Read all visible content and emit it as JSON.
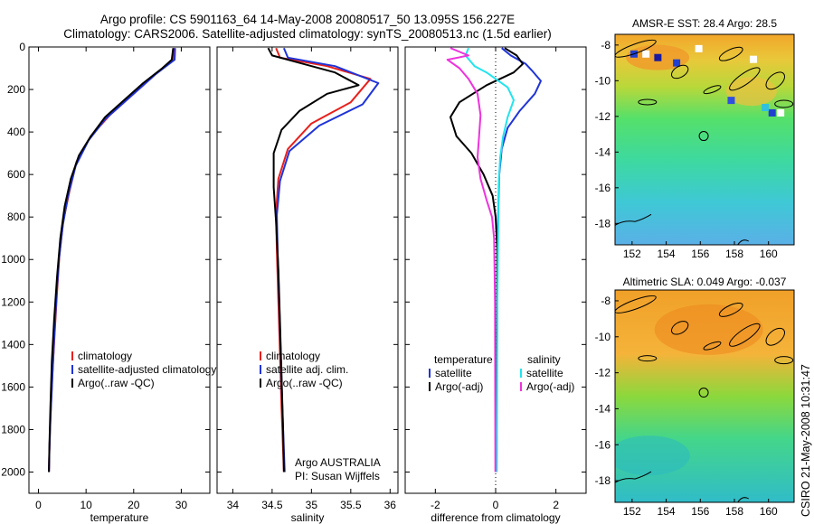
{
  "title_line1": "Argo profile: CS 5901163_64 14-May-2008 20080517_50 13.095S 156.227E",
  "title_line2": "Climatology: CARS2006. Satellite-adjusted climatology: synTS_20080513.nc (1.5d earlier)",
  "side_stamp": "CSIRO 21-May-2008 10:31:47",
  "colors": {
    "clim": "#e8201c",
    "sat": "#1f34d8",
    "argo": "#000000",
    "sal_sat": "#22e4ee",
    "sal_argo": "#ee33dd"
  },
  "chart_data": [
    {
      "type": "line",
      "id": "temperature",
      "xlabel": "temperature",
      "xlim": [
        -2,
        36
      ],
      "ylim": [
        2100,
        0
      ],
      "xticks": [
        0,
        10,
        20,
        30
      ],
      "yticks": [
        0,
        200,
        400,
        600,
        800,
        1000,
        1200,
        1400,
        1600,
        1800,
        2000
      ],
      "legend": [
        "climatology",
        "satellite-adjusted climatology",
        "Argo(..raw -QC)"
      ],
      "series": [
        {
          "name": "climatology",
          "color": "clim",
          "x": [
            28.5,
            28.4,
            25,
            20,
            15,
            11,
            8,
            6.5,
            5.2,
            4.4,
            3.9,
            3.4,
            2.9,
            2.5,
            2.3,
            2.2
          ],
          "y": [
            5,
            60,
            120,
            220,
            320,
            420,
            540,
            680,
            820,
            980,
            1150,
            1350,
            1550,
            1750,
            1900,
            2000
          ]
        },
        {
          "name": "satellite-adjusted climatology",
          "color": "sat",
          "x": [
            28.7,
            28.6,
            24.5,
            19,
            14,
            10.5,
            7.8,
            6.2,
            5.1,
            4.3,
            3.8,
            3.3,
            2.9,
            2.5,
            2.3,
            2.2
          ],
          "y": [
            5,
            60,
            130,
            240,
            340,
            440,
            560,
            700,
            840,
            1000,
            1170,
            1370,
            1560,
            1760,
            1900,
            2000
          ]
        },
        {
          "name": "Argo(..raw -QC)",
          "color": "argo",
          "x": [
            28.3,
            28,
            26,
            22,
            18,
            14,
            11,
            8.5,
            6.8,
            5.5,
            4.6,
            3.9,
            3.3,
            2.8,
            2.5,
            2.3,
            2.2
          ],
          "y": [
            5,
            60,
            100,
            170,
            250,
            330,
            420,
            510,
            620,
            750,
            900,
            1080,
            1280,
            1480,
            1700,
            1880,
            2000
          ]
        }
      ]
    },
    {
      "type": "line",
      "id": "salinity",
      "xlabel": "salinity",
      "xlim": [
        33.8,
        36.1
      ],
      "ylim": [
        2100,
        0
      ],
      "xticks": [
        34,
        34.5,
        35,
        35.5,
        36
      ],
      "legend": [
        "climatology",
        "satellite adj. clim.",
        "Argo(..raw -QC)"
      ],
      "series": [
        {
          "name": "climatology",
          "color": "clim",
          "x": [
            34.55,
            34.6,
            35.2,
            35.75,
            35.5,
            35.0,
            34.7,
            34.58,
            34.55,
            34.56,
            34.58,
            34.6,
            34.62,
            34.64,
            34.65
          ],
          "y": [
            5,
            50,
            90,
            150,
            260,
            360,
            480,
            620,
            780,
            960,
            1200,
            1450,
            1700,
            1900,
            2000
          ]
        },
        {
          "name": "satellite adj. clim.",
          "color": "sat",
          "x": [
            34.65,
            34.7,
            35.3,
            35.85,
            35.65,
            35.1,
            34.72,
            34.6,
            34.56,
            34.57,
            34.59,
            34.61,
            34.63,
            34.65,
            34.66
          ],
          "y": [
            5,
            50,
            90,
            170,
            270,
            370,
            490,
            630,
            790,
            970,
            1200,
            1450,
            1700,
            1900,
            2000
          ]
        },
        {
          "name": "Argo(..raw -QC)",
          "color": "argo",
          "x": [
            34.45,
            34.5,
            34.9,
            35.3,
            35.6,
            35.2,
            34.85,
            34.62,
            34.52,
            34.52,
            34.55,
            34.58,
            34.6,
            34.62,
            34.64,
            34.65
          ],
          "y": [
            5,
            40,
            80,
            120,
            180,
            220,
            300,
            390,
            500,
            660,
            820,
            1050,
            1300,
            1550,
            1800,
            2000
          ]
        }
      ],
      "annotation": [
        "Argo AUSTRALIA",
        "PI: Susan Wijffels"
      ]
    },
    {
      "type": "line",
      "id": "difference",
      "xlabel": "difference from climatology",
      "xlim": [
        -3,
        3
      ],
      "ylim": [
        2100,
        0
      ],
      "xticks": [
        -2,
        0,
        2
      ],
      "legend_left_title": "temperature",
      "legend_right_title": "salinity",
      "legend_left": [
        "satellite",
        "Argo(-adj)"
      ],
      "legend_right": [
        "satellite",
        "Argo(-adj)"
      ],
      "series": [
        {
          "name": "temperature satellite",
          "color": "sat",
          "x": [
            0.2,
            0.5,
            1.0,
            1.2,
            1.5,
            1.3,
            0.8,
            0.4,
            0.2,
            0.12,
            0.08,
            0.06,
            0.05,
            0.04,
            0.03
          ],
          "y": [
            5,
            40,
            80,
            110,
            160,
            220,
            300,
            380,
            480,
            600,
            800,
            1000,
            1300,
            1600,
            2000
          ]
        },
        {
          "name": "temperature Argo(-adj)",
          "color": "argo",
          "x": [
            0.3,
            0.7,
            0.9,
            0.6,
            -0.3,
            -1.2,
            -1.5,
            -1.3,
            -0.8,
            -0.4,
            -0.1,
            0.0,
            0.05,
            0.05,
            0.04,
            0.03
          ],
          "y": [
            5,
            40,
            80,
            120,
            180,
            260,
            330,
            420,
            500,
            600,
            700,
            800,
            950,
            1200,
            1600,
            2000
          ]
        },
        {
          "name": "salinity satellite",
          "color": "sal_sat",
          "x": [
            -0.9,
            -1.0,
            -0.7,
            -0.3,
            0.0,
            0.4,
            0.6,
            0.4,
            0.25,
            0.15,
            0.1,
            0.08,
            0.06,
            0.05,
            0.04
          ],
          "y": [
            5,
            40,
            90,
            120,
            150,
            190,
            250,
            330,
            420,
            520,
            650,
            900,
            1200,
            1600,
            2000
          ]
        },
        {
          "name": "salinity Argo(-adj)",
          "color": "sal_argo",
          "x": [
            -1.5,
            -0.9,
            -1.6,
            -1.2,
            -0.9,
            -0.6,
            -0.5,
            -0.55,
            -0.6,
            -0.5,
            -0.3,
            -0.12,
            -0.05,
            -0.02,
            -0.01
          ],
          "y": [
            5,
            40,
            60,
            100,
            150,
            220,
            320,
            420,
            520,
            620,
            720,
            800,
            900,
            1200,
            2000
          ]
        }
      ]
    },
    {
      "type": "heatmap",
      "id": "sst_map",
      "title": "AMSR-E SST: 28.4 Argo: 28.5",
      "xticks": [
        "152",
        "154",
        "156",
        "158",
        "160"
      ],
      "yticks": [
        "-8",
        "-10",
        "-12",
        "-14",
        "-16",
        "-18"
      ],
      "xlim": [
        151,
        161.5
      ],
      "ylim": [
        -19.2,
        -7.4
      ],
      "argo_position": [
        156.2,
        -13.1
      ]
    },
    {
      "type": "heatmap",
      "id": "sla_map",
      "title": "Altimetric SLA: 0.049 Argo: -0.037",
      "xticks": [
        "152",
        "154",
        "156",
        "158",
        "160"
      ],
      "yticks": [
        "-8",
        "-10",
        "-12",
        "-14",
        "-16",
        "-18"
      ],
      "xlim": [
        151,
        161.5
      ],
      "ylim": [
        -19.2,
        -7.4
      ],
      "argo_position": [
        156.2,
        -13.1
      ]
    }
  ]
}
